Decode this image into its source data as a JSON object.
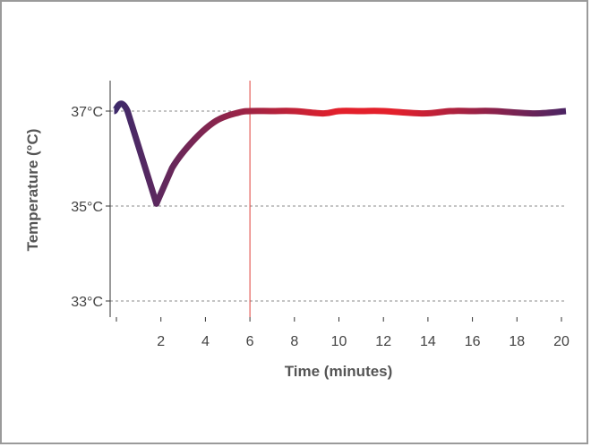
{
  "chart_data": {
    "type": "line",
    "title": "",
    "xlabel": "Time (minutes)",
    "ylabel": "Temperature (°C)",
    "xlim": [
      0,
      20
    ],
    "ylim": [
      32.5,
      39
    ],
    "x_ticks": [
      0,
      2,
      4,
      6,
      8,
      10,
      12,
      14,
      16,
      18,
      20
    ],
    "x_tick_labels": [
      "",
      "2",
      "4",
      "6",
      "8",
      "10",
      "12",
      "14",
      "16",
      "18",
      "20"
    ],
    "y_ticks": [
      33,
      35,
      37
    ],
    "y_tick_labels": [
      "33°C",
      "35°C",
      "37°C"
    ],
    "grid": "horizontal dashed at y ticks",
    "reference_line": {
      "x": 6,
      "color": "#e0403a"
    },
    "series": [
      {
        "x": [
          -0.1,
          0.5,
          1.8,
          2.5,
          3.5,
          4.5,
          5.5,
          6,
          7,
          8,
          9.3,
          10,
          11,
          12,
          13.8,
          15,
          16,
          17,
          18.8,
          20.2
        ],
        "y": [
          37,
          37,
          35.05,
          35.8,
          36.4,
          36.8,
          36.97,
          37,
          37,
          37,
          36.95,
          37,
          37,
          37,
          36.95,
          37,
          37,
          37,
          36.95,
          37
        ],
        "color_gradient": [
          "#3b2a6b",
          "#e3202b",
          "#e3202b",
          "#4a2463"
        ]
      }
    ]
  }
}
